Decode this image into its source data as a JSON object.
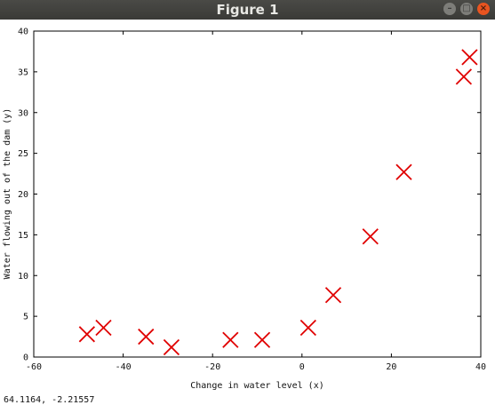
{
  "window": {
    "title": "Figure 1",
    "minimize_icon": "minimize-icon",
    "maximize_icon": "maximize-icon",
    "close_icon": "close-icon",
    "minimize_glyph": "–",
    "maximize_glyph": "□",
    "close_glyph": "×"
  },
  "status": {
    "coordinates": "64.1164, -2.21557"
  },
  "chart_data": {
    "type": "scatter",
    "title": "",
    "xlabel": "Change in water level (x)",
    "ylabel": "Water flowing out of the dam (y)",
    "xlim": [
      -60,
      40
    ],
    "ylim": [
      0,
      40
    ],
    "xticks": [
      -60,
      -40,
      -20,
      0,
      20,
      40
    ],
    "yticks": [
      0,
      5,
      10,
      15,
      20,
      25,
      30,
      35,
      40
    ],
    "marker": "x",
    "marker_color": "#e00000",
    "grid": false,
    "points": [
      {
        "x": -48.1,
        "y": 2.8
      },
      {
        "x": -44.4,
        "y": 3.6
      },
      {
        "x": -34.9,
        "y": 2.5
      },
      {
        "x": -29.2,
        "y": 1.2
      },
      {
        "x": -16.0,
        "y": 2.1
      },
      {
        "x": -8.9,
        "y": 2.1
      },
      {
        "x": 1.4,
        "y": 3.6
      },
      {
        "x": 7.0,
        "y": 7.6
      },
      {
        "x": 15.3,
        "y": 14.8
      },
      {
        "x": 22.8,
        "y": 22.7
      },
      {
        "x": 36.2,
        "y": 34.4
      },
      {
        "x": 37.5,
        "y": 36.8
      }
    ]
  }
}
